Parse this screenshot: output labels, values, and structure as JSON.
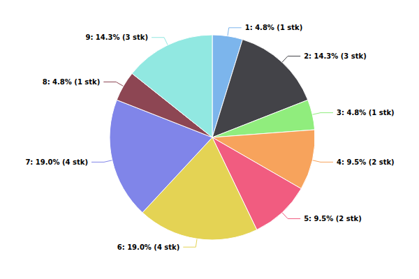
{
  "chart_data": {
    "type": "pie",
    "categories": [
      "1",
      "2",
      "3",
      "4",
      "5",
      "6",
      "7",
      "8",
      "9"
    ],
    "values": [
      1,
      3,
      1,
      2,
      2,
      4,
      4,
      1,
      3
    ],
    "value_labels": [
      "1: 4.8% (1 stk)",
      "2: 14.3% (3 stk)",
      "3: 4.8% (1 stk)",
      "4: 9.5% (2 stk)",
      "5: 9.5% (2 stk)",
      "6: 19.0% (4 stk)",
      "7: 19.0% (4 stk)",
      "8: 4.8% (1 stk)",
      "9: 14.3% (3 stk)"
    ],
    "colors": [
      "#7cb5ec",
      "#434348",
      "#90ed7d",
      "#f7a35c",
      "#f15c80",
      "#e4d354",
      "#8085e9",
      "#8d4653",
      "#91e8e1"
    ],
    "data_labels": true
  }
}
